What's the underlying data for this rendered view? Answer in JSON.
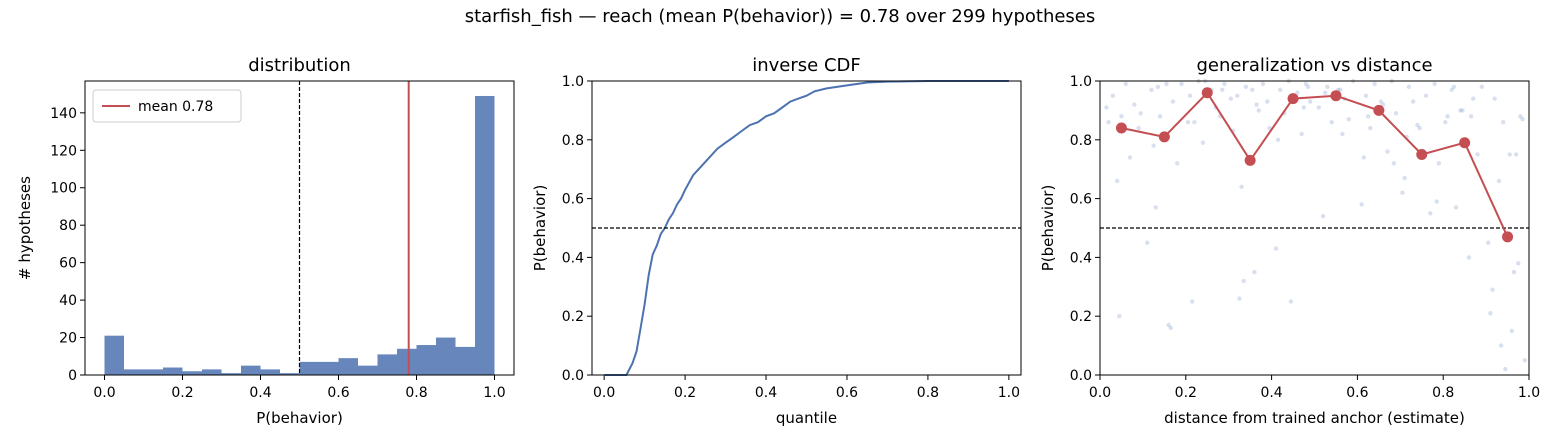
{
  "figure": {
    "suptitle": "starfish_fish  —  reach (mean P(behavior)) = 0.78  over 299 hypotheses"
  },
  "colors": {
    "blue": "#4c72b0",
    "red": "#c44e52",
    "black": "#000000"
  },
  "chart_data": [
    {
      "type": "bar",
      "title": "distribution",
      "xlabel": "P(behavior)",
      "ylabel": "# hypotheses",
      "xlim": [
        -0.05,
        1.05
      ],
      "ylim": [
        0,
        157
      ],
      "xticks": [
        "0.0",
        "0.2",
        "0.4",
        "0.6",
        "0.8",
        "1.0"
      ],
      "yticks": [
        "0",
        "20",
        "40",
        "60",
        "80",
        "100",
        "120",
        "140"
      ],
      "bin_width": 0.05,
      "bin_starts": [
        0.0,
        0.05,
        0.1,
        0.15,
        0.2,
        0.25,
        0.3,
        0.35,
        0.4,
        0.45,
        0.5,
        0.55,
        0.6,
        0.65,
        0.7,
        0.75,
        0.8,
        0.85,
        0.9,
        0.95
      ],
      "values": [
        21,
        3,
        3,
        4,
        2,
        3,
        1,
        5,
        3,
        1,
        7,
        7,
        9,
        5,
        11,
        14,
        16,
        20,
        15,
        149
      ],
      "reference_lines": [
        {
          "x": 0.5,
          "style": "dashed",
          "color": "#000000"
        },
        {
          "x": 0.78,
          "style": "solid",
          "color": "#c44e52",
          "label": "mean 0.78"
        }
      ],
      "legend": {
        "position": "top-left",
        "entries": [
          "mean 0.78"
        ]
      },
      "grid": false
    },
    {
      "type": "line",
      "title": "inverse CDF",
      "xlabel": "quantile",
      "ylabel": "P(behavior)",
      "xlim": [
        -0.03,
        1.03
      ],
      "ylim": [
        0,
        1
      ],
      "xticks": [
        "0.0",
        "0.2",
        "0.4",
        "0.6",
        "0.8",
        "1.0"
      ],
      "yticks": [
        "0.0",
        "0.2",
        "0.4",
        "0.6",
        "0.8",
        "1.0"
      ],
      "series": [
        {
          "x": [
            0.0,
            0.055,
            0.07,
            0.08,
            0.09,
            0.1,
            0.11,
            0.12,
            0.13,
            0.14,
            0.15,
            0.16,
            0.17,
            0.18,
            0.19,
            0.2,
            0.22,
            0.24,
            0.26,
            0.28,
            0.3,
            0.32,
            0.34,
            0.36,
            0.38,
            0.4,
            0.42,
            0.44,
            0.46,
            0.48,
            0.5,
            0.52,
            0.55,
            0.6,
            0.65,
            0.7,
            0.8,
            0.9,
            1.0
          ],
          "y": [
            0.0,
            0.0,
            0.04,
            0.08,
            0.16,
            0.24,
            0.34,
            0.41,
            0.44,
            0.48,
            0.5,
            0.53,
            0.55,
            0.58,
            0.6,
            0.63,
            0.68,
            0.71,
            0.74,
            0.77,
            0.79,
            0.81,
            0.83,
            0.85,
            0.86,
            0.88,
            0.89,
            0.91,
            0.93,
            0.94,
            0.95,
            0.965,
            0.975,
            0.985,
            0.995,
            0.998,
            1.0,
            1.0,
            1.0
          ],
          "color": "#4c72b0"
        }
      ],
      "reference_lines": [
        {
          "y": 0.5,
          "style": "dashed",
          "color": "#000000"
        }
      ],
      "grid": false
    },
    {
      "type": "scatter",
      "title": "generalization vs distance",
      "xlabel": "distance from trained anchor (estimate)",
      "ylabel": "P(behavior)",
      "xlim": [
        0.0,
        1.0
      ],
      "ylim": [
        0,
        1
      ],
      "xticks": [
        "0.0",
        "0.2",
        "0.4",
        "0.6",
        "0.8",
        "1.0"
      ],
      "yticks": [
        "0.0",
        "0.2",
        "0.4",
        "0.6",
        "0.8",
        "1.0"
      ],
      "binned_mean": {
        "x": [
          0.05,
          0.15,
          0.25,
          0.35,
          0.45,
          0.55,
          0.65,
          0.75,
          0.85,
          0.95
        ],
        "y": [
          0.84,
          0.81,
          0.96,
          0.73,
          0.94,
          0.95,
          0.9,
          0.75,
          0.79,
          0.47
        ],
        "color": "#c44e52"
      },
      "scatter_points": {
        "color": "#4c72b0",
        "x": [
          0.02,
          0.03,
          0.04,
          0.05,
          0.06,
          0.07,
          0.08,
          0.09,
          0.11,
          0.12,
          0.13,
          0.14,
          0.16,
          0.17,
          0.18,
          0.19,
          0.21,
          0.22,
          0.23,
          0.24,
          0.26,
          0.27,
          0.28,
          0.29,
          0.31,
          0.32,
          0.33,
          0.34,
          0.36,
          0.37,
          0.38,
          0.39,
          0.41,
          0.42,
          0.43,
          0.44,
          0.46,
          0.47,
          0.48,
          0.49,
          0.51,
          0.52,
          0.53,
          0.54,
          0.56,
          0.57,
          0.58,
          0.59,
          0.61,
          0.62,
          0.63,
          0.64,
          0.66,
          0.67,
          0.68,
          0.69,
          0.71,
          0.72,
          0.73,
          0.74,
          0.76,
          0.77,
          0.78,
          0.79,
          0.81,
          0.82,
          0.83,
          0.84,
          0.86,
          0.87,
          0.88,
          0.89,
          0.91,
          0.92,
          0.93,
          0.94,
          0.96,
          0.97,
          0.98,
          0.99,
          0.015,
          0.045,
          0.095,
          0.135,
          0.155,
          0.205,
          0.245,
          0.285,
          0.325,
          0.335,
          0.365,
          0.395,
          0.445,
          0.485,
          0.525,
          0.565,
          0.625,
          0.685,
          0.705,
          0.745,
          0.785,
          0.825,
          0.865,
          0.905,
          0.935,
          0.955,
          0.975,
          0.985,
          0.125,
          0.165,
          0.215,
          0.305,
          0.355,
          0.415,
          0.475,
          0.555,
          0.615,
          0.655,
          0.715,
          0.805,
          0.845,
          0.915,
          0.945,
          0.965
        ],
        "y": [
          0.86,
          0.95,
          0.66,
          0.88,
          0.99,
          0.74,
          0.92,
          0.84,
          0.45,
          0.97,
          0.57,
          0.88,
          0.17,
          0.93,
          0.72,
          0.99,
          0.95,
          0.86,
          1.0,
          0.79,
          0.97,
          0.91,
          0.88,
          0.99,
          0.83,
          0.95,
          0.64,
          0.98,
          0.35,
          0.9,
          0.99,
          0.93,
          0.43,
          0.97,
          0.89,
          1.0,
          0.96,
          0.82,
          0.99,
          0.93,
          0.91,
          0.54,
          0.98,
          0.86,
          0.97,
          0.94,
          0.87,
          1.0,
          0.58,
          0.95,
          0.84,
          0.99,
          0.92,
          0.76,
          1.0,
          0.89,
          0.67,
          0.98,
          0.93,
          0.85,
          0.95,
          0.55,
          0.99,
          0.72,
          0.88,
          0.97,
          0.57,
          0.9,
          0.4,
          0.94,
          0.75,
          0.98,
          0.21,
          0.94,
          0.66,
          0.86,
          0.15,
          0.75,
          0.88,
          0.05,
          0.91,
          0.2,
          0.89,
          0.98,
          0.99,
          0.86,
          1.0,
          0.97,
          0.26,
          0.32,
          0.92,
          0.84,
          0.25,
          0.98,
          0.96,
          0.82,
          0.88,
          0.72,
          0.62,
          0.84,
          0.59,
          0.98,
          0.88,
          0.45,
          0.1,
          0.75,
          0.38,
          0.87,
          0.78,
          0.16,
          0.25,
          0.94,
          0.97,
          0.8,
          0.91,
          0.97,
          0.74,
          0.93,
          0.81,
          0.86,
          0.9,
          0.29,
          0.02,
          0.35
        ]
      },
      "reference_lines": [
        {
          "y": 0.5,
          "style": "dashed",
          "color": "#000000"
        }
      ],
      "grid": false
    }
  ]
}
